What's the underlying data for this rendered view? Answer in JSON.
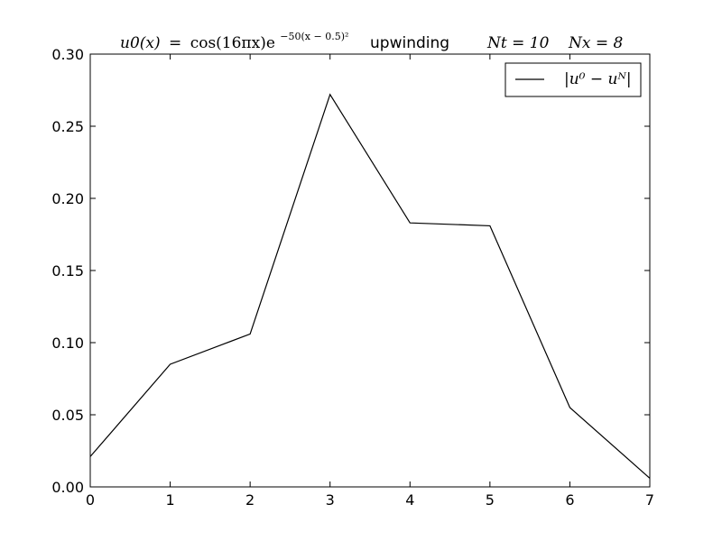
{
  "chart_data": {
    "type": "line",
    "title": {
      "formula_lhs": "u0(x)",
      "formula_rhs": "cos(16πx)e",
      "formula_exponent": "−50(x − 0.5)²",
      "method": "upwinding",
      "nt": "Nt = 10",
      "nx": "Nx = 8"
    },
    "xlabel": "",
    "ylabel": "",
    "x": [
      0,
      1,
      2,
      3,
      4,
      5,
      6,
      7
    ],
    "series": [
      {
        "name": "|u⁰ − uᴺ|",
        "color": "#000000",
        "values": [
          0.021,
          0.085,
          0.106,
          0.272,
          0.183,
          0.181,
          0.055,
          0.006
        ]
      }
    ],
    "xlim": [
      0,
      7
    ],
    "ylim": [
      0,
      0.3
    ],
    "x_ticks": [
      "0",
      "1",
      "2",
      "3",
      "4",
      "5",
      "6",
      "7"
    ],
    "y_ticks": [
      "0.00",
      "0.05",
      "0.10",
      "0.15",
      "0.20",
      "0.25",
      "0.30"
    ],
    "grid": false,
    "legend_position": "top-right"
  }
}
